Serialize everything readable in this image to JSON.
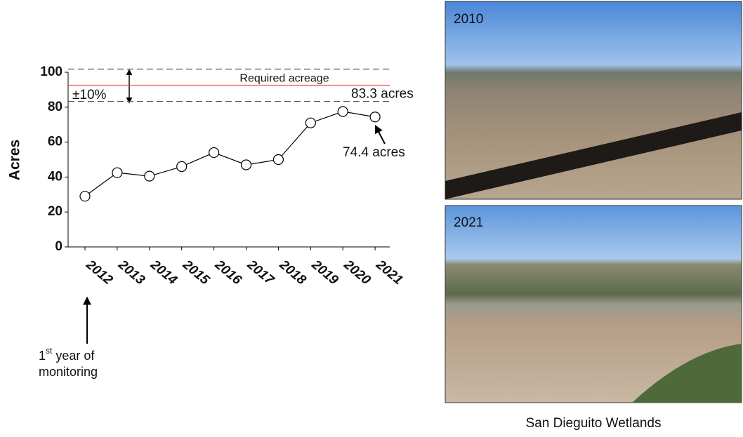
{
  "chart_data": {
    "type": "line",
    "y_label": "Acres",
    "categories": [
      "2012",
      "2013",
      "2014",
      "2015",
      "2016",
      "2017",
      "2018",
      "2019",
      "2020",
      "2021"
    ],
    "values": [
      29,
      42.5,
      40.5,
      46,
      54,
      47,
      50,
      71,
      77.5,
      74.4
    ],
    "value_labels": [
      null,
      null,
      null,
      null,
      null,
      null,
      null,
      null,
      null,
      "74.4 acres"
    ],
    "color": "#000000",
    "ylim": [
      0,
      100
    ],
    "yticks": [
      0,
      20,
      40,
      60,
      80,
      100
    ],
    "reference_lines": [
      {
        "value": 92.6,
        "label": "Required acreage",
        "color": "#e8504f",
        "style": "solid"
      },
      {
        "value": 101.8,
        "color": "#555555",
        "style": "dashed"
      },
      {
        "value": 83.3,
        "label": "83.3 acres",
        "color": "#555555",
        "style": "dashed"
      }
    ],
    "band_label": "±10%",
    "first_year_note": {
      "number": "1",
      "suffix": "st",
      "lines": [
        " year of",
        "monitoring"
      ]
    }
  },
  "photos": [
    {
      "label": "2010"
    },
    {
      "label": "2021"
    }
  ],
  "caption": "San Dieguito Wetlands"
}
